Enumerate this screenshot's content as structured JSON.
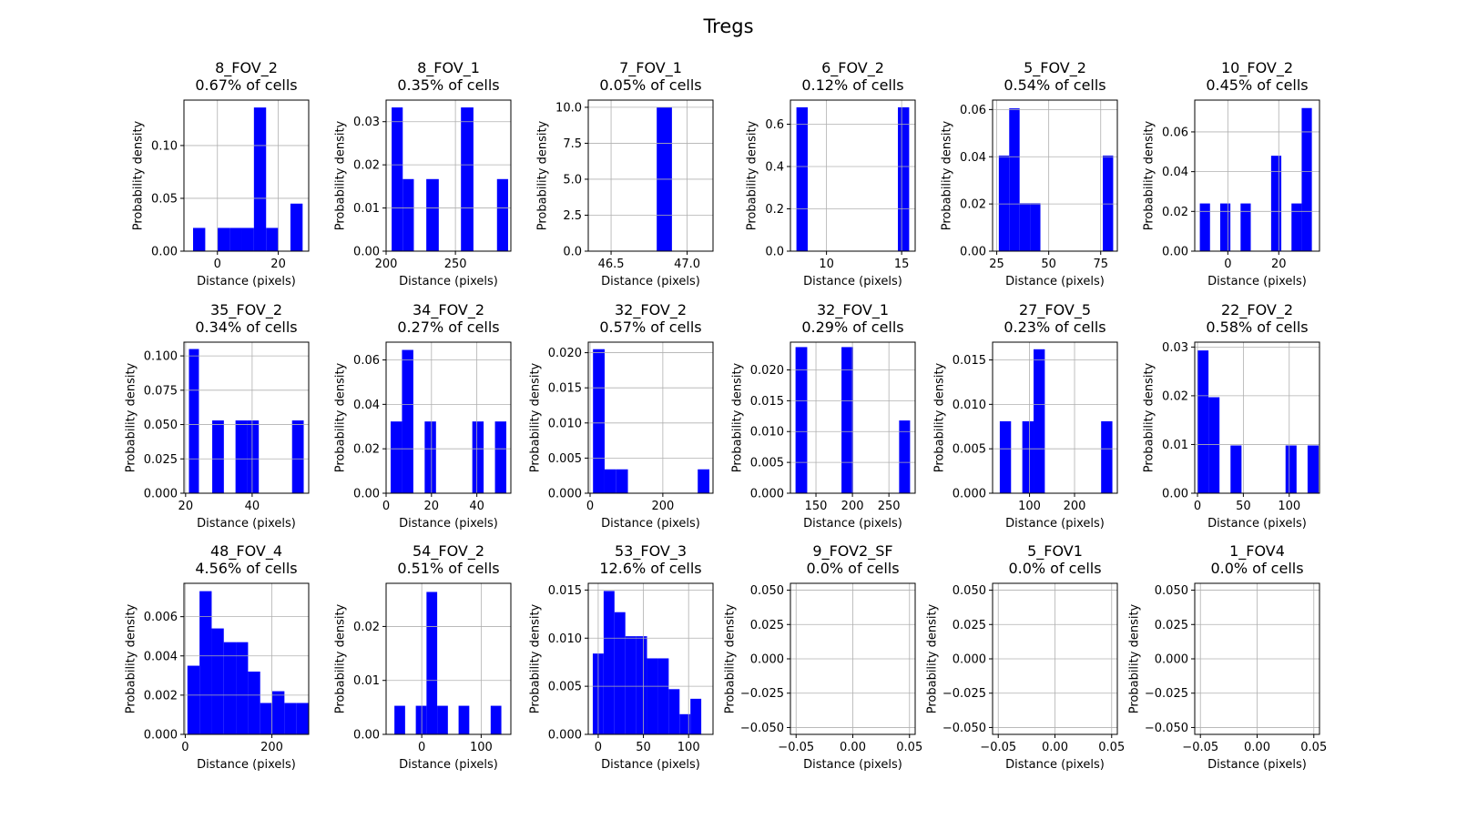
{
  "figure": {
    "suptitle": "Tregs"
  },
  "chart_data": [
    {
      "type": "bar",
      "title": "8_FOV_2",
      "subtitle": "0.67% of cells",
      "xlabel": "Distance (pixels)",
      "ylabel": "Probability density",
      "xlim": [
        -11,
        30
      ],
      "ylim": [
        0,
        0.143
      ],
      "xticks": [
        0,
        20
      ],
      "xtick_labels": [
        "0",
        "20"
      ],
      "yticks": [
        0,
        0.05,
        0.1
      ],
      "ytick_labels": [
        "0.00",
        "0.05",
        "0.10"
      ],
      "bins": [
        [
          -8,
          -4,
          0.022
        ],
        [
          -4,
          0,
          0
        ],
        [
          0,
          4,
          0.022
        ],
        [
          4,
          8,
          0.022
        ],
        [
          8,
          12,
          0.022
        ],
        [
          12,
          16,
          0.136
        ],
        [
          16,
          20,
          0.022
        ],
        [
          20,
          24,
          0
        ],
        [
          24,
          28,
          0.045
        ]
      ]
    },
    {
      "type": "bar",
      "title": "8_FOV_1",
      "subtitle": "0.35% of cells",
      "xlabel": "Distance (pixels)",
      "ylabel": "Probability density",
      "xlim": [
        200,
        290
      ],
      "ylim": [
        0,
        0.035
      ],
      "xticks": [
        200,
        250
      ],
      "xtick_labels": [
        "200",
        "250"
      ],
      "yticks": [
        0,
        0.01,
        0.02,
        0.03
      ],
      "ytick_labels": [
        "0.00",
        "0.01",
        "0.02",
        "0.03"
      ],
      "bins": [
        [
          204,
          212,
          0.0333
        ],
        [
          212,
          220,
          0.0167
        ],
        [
          220,
          229,
          0
        ],
        [
          229,
          238,
          0.0167
        ],
        [
          238,
          254,
          0
        ],
        [
          254,
          263,
          0.0333
        ],
        [
          263,
          280,
          0
        ],
        [
          280,
          288,
          0.0167
        ]
      ]
    },
    {
      "type": "bar",
      "title": "7_FOV_1",
      "subtitle": "0.05% of cells",
      "xlabel": "Distance (pixels)",
      "ylabel": "Probability density",
      "xlim": [
        46.35,
        47.17
      ],
      "ylim": [
        0,
        10.5
      ],
      "xticks": [
        46.5,
        47.0
      ],
      "xtick_labels": [
        "46.5",
        "47.0"
      ],
      "yticks": [
        0,
        2.5,
        5.0,
        7.5,
        10.0
      ],
      "ytick_labels": [
        "0.0",
        "2.5",
        "5.0",
        "7.5",
        "10.0"
      ],
      "bins": [
        [
          46.8,
          46.9,
          10.0
        ]
      ]
    },
    {
      "type": "bar",
      "title": "6_FOV_2",
      "subtitle": "0.12% of cells",
      "xlabel": "Distance (pixels)",
      "ylabel": "Probability density",
      "xlim": [
        7.6,
        15.9
      ],
      "ylim": [
        0,
        0.714
      ],
      "xticks": [
        10,
        15
      ],
      "xtick_labels": [
        "10",
        "15"
      ],
      "yticks": [
        0,
        0.2,
        0.4,
        0.6
      ],
      "ytick_labels": [
        "0.0",
        "0.2",
        "0.4",
        "0.6"
      ],
      "bins": [
        [
          8,
          8.75,
          0.68
        ],
        [
          8.75,
          14.75,
          0
        ],
        [
          14.75,
          15.5,
          0.68
        ]
      ]
    },
    {
      "type": "bar",
      "title": "5_FOV_2",
      "subtitle": "0.54% of cells",
      "xlabel": "Distance (pixels)",
      "ylabel": "Probability density",
      "xlim": [
        23,
        83
      ],
      "ylim": [
        0,
        0.064
      ],
      "xticks": [
        25,
        50,
        75
      ],
      "xtick_labels": [
        "25",
        "50",
        "75"
      ],
      "yticks": [
        0,
        0.02,
        0.04,
        0.06
      ],
      "ytick_labels": [
        "0.00",
        "0.02",
        "0.04",
        "0.06"
      ],
      "bins": [
        [
          26,
          31,
          0.0405
        ],
        [
          31,
          36,
          0.0605
        ],
        [
          36,
          41,
          0.0203
        ],
        [
          41,
          46,
          0.0203
        ],
        [
          46,
          76,
          0
        ],
        [
          76,
          81,
          0.0405
        ]
      ]
    },
    {
      "type": "bar",
      "title": "10_FOV_2",
      "subtitle": "0.45% of cells",
      "xlabel": "Distance (pixels)",
      "ylabel": "Probability density",
      "xlim": [
        -13,
        36
      ],
      "ylim": [
        0,
        0.076
      ],
      "xticks": [
        0,
        20
      ],
      "xtick_labels": [
        "0",
        "20"
      ],
      "yticks": [
        0,
        0.02,
        0.04,
        0.06
      ],
      "ytick_labels": [
        "0.00",
        "0.02",
        "0.04",
        "0.06"
      ],
      "bins": [
        [
          -11,
          -7,
          0.024
        ],
        [
          -7,
          -3,
          0
        ],
        [
          -3,
          1,
          0.024
        ],
        [
          1,
          5,
          0
        ],
        [
          5,
          9,
          0.024
        ],
        [
          9,
          17,
          0
        ],
        [
          17,
          21,
          0.048
        ],
        [
          21,
          25,
          0
        ],
        [
          25,
          29,
          0.024
        ],
        [
          29,
          33,
          0.072
        ]
      ]
    },
    {
      "type": "bar",
      "title": "35_FOV_2",
      "subtitle": "0.34% of cells",
      "xlabel": "Distance (pixels)",
      "ylabel": "Probability density",
      "xlim": [
        19.5,
        57
      ],
      "ylim": [
        0,
        0.11
      ],
      "xticks": [
        20,
        40
      ],
      "xtick_labels": [
        "20",
        "40"
      ],
      "yticks": [
        0,
        0.025,
        0.05,
        0.075,
        0.1
      ],
      "ytick_labels": [
        "0.000",
        "0.025",
        "0.050",
        "0.075",
        "0.100"
      ],
      "bins": [
        [
          21,
          24,
          0.105
        ],
        [
          24,
          28,
          0
        ],
        [
          28,
          31.5,
          0.053
        ],
        [
          31.5,
          35,
          0
        ],
        [
          35,
          38.5,
          0.053
        ],
        [
          38.5,
          42,
          0.053
        ],
        [
          42,
          52,
          0
        ],
        [
          52,
          55.5,
          0.053
        ]
      ]
    },
    {
      "type": "bar",
      "title": "34_FOV_2",
      "subtitle": "0.27% of cells",
      "xlabel": "Distance (pixels)",
      "ylabel": "Probability density",
      "xlim": [
        0,
        55
      ],
      "ylim": [
        0,
        0.068
      ],
      "xticks": [
        0,
        20,
        40
      ],
      "xtick_labels": [
        "0",
        "20",
        "40"
      ],
      "yticks": [
        0,
        0.02,
        0.04,
        0.06
      ],
      "ytick_labels": [
        "0.00",
        "0.02",
        "0.04",
        "0.06"
      ],
      "bins": [
        [
          2,
          7,
          0.0323
        ],
        [
          7,
          12,
          0.0645
        ],
        [
          12,
          17,
          0
        ],
        [
          17,
          22,
          0.0323
        ],
        [
          22,
          38,
          0
        ],
        [
          38,
          43,
          0.0323
        ],
        [
          43,
          48,
          0
        ],
        [
          48,
          53,
          0.0323
        ]
      ]
    },
    {
      "type": "bar",
      "title": "32_FOV_2",
      "subtitle": "0.57% of cells",
      "xlabel": "Distance (pixels)",
      "ylabel": "Probability density",
      "xlim": [
        -5,
        338
      ],
      "ylim": [
        0,
        0.0215
      ],
      "xticks": [
        0,
        200
      ],
      "xtick_labels": [
        "0",
        "200"
      ],
      "yticks": [
        0,
        0.005,
        0.01,
        0.015,
        0.02
      ],
      "ytick_labels": [
        "0.000",
        "0.005",
        "0.010",
        "0.015",
        "0.020"
      ],
      "bins": [
        [
          8,
          40,
          0.0205
        ],
        [
          40,
          72,
          0.0034
        ],
        [
          72,
          104,
          0.0034
        ],
        [
          104,
          296,
          0
        ],
        [
          296,
          328,
          0.0034
        ]
      ]
    },
    {
      "type": "bar",
      "title": "32_FOV_1",
      "subtitle": "0.29% of cells",
      "xlabel": "Distance (pixels)",
      "ylabel": "Probability density",
      "xlim": [
        115,
        286
      ],
      "ylim": [
        0,
        0.0245
      ],
      "xticks": [
        150,
        200,
        250
      ],
      "xtick_labels": [
        "150",
        "200",
        "250"
      ],
      "yticks": [
        0,
        0.005,
        0.01,
        0.015,
        0.02
      ],
      "ytick_labels": [
        "0.000",
        "0.005",
        "0.010",
        "0.015",
        "0.020"
      ],
      "bins": [
        [
          122,
          138,
          0.0237
        ],
        [
          138,
          185,
          0
        ],
        [
          185,
          201,
          0.0237
        ],
        [
          201,
          264,
          0
        ],
        [
          264,
          279,
          0.0118
        ]
      ]
    },
    {
      "type": "bar",
      "title": "27_FOV_5",
      "subtitle": "0.23% of cells",
      "xlabel": "Distance (pixels)",
      "ylabel": "Probability density",
      "xlim": [
        18,
        295
      ],
      "ylim": [
        0,
        0.017
      ],
      "xticks": [
        100,
        200
      ],
      "xtick_labels": [
        "100",
        "200"
      ],
      "yticks": [
        0,
        0.005,
        0.01,
        0.015
      ],
      "ytick_labels": [
        "0.000",
        "0.005",
        "0.010",
        "0.015"
      ],
      "bins": [
        [
          34,
          59,
          0.0081
        ],
        [
          59,
          84,
          0
        ],
        [
          84,
          109,
          0.0081
        ],
        [
          109,
          134,
          0.0162
        ],
        [
          134,
          259,
          0
        ],
        [
          259,
          284,
          0.0081
        ]
      ]
    },
    {
      "type": "bar",
      "title": "22_FOV_2",
      "subtitle": "0.58% of cells",
      "xlabel": "Distance (pixels)",
      "ylabel": "Probability density",
      "xlim": [
        -3,
        133
      ],
      "ylim": [
        0,
        0.031
      ],
      "xticks": [
        0,
        50,
        100
      ],
      "xtick_labels": [
        "0",
        "50",
        "100"
      ],
      "yticks": [
        0,
        0.01,
        0.02,
        0.03
      ],
      "ytick_labels": [
        "0.00",
        "0.01",
        "0.02",
        "0.03"
      ],
      "bins": [
        [
          0,
          12,
          0.0293
        ],
        [
          12,
          24,
          0.0197
        ],
        [
          24,
          36,
          0
        ],
        [
          36,
          48,
          0.0098
        ],
        [
          48,
          96,
          0
        ],
        [
          96,
          108,
          0.0098
        ],
        [
          108,
          120,
          0
        ],
        [
          120,
          132,
          0.0098
        ]
      ]
    },
    {
      "type": "bar",
      "title": "48_FOV_4",
      "subtitle": "4.56% of cells",
      "xlabel": "Distance (pixels)",
      "ylabel": "Probability density",
      "xlim": [
        -3,
        285
      ],
      "ylim": [
        0,
        0.0077
      ],
      "xticks": [
        0,
        200
      ],
      "xtick_labels": [
        "0",
        "200"
      ],
      "yticks": [
        0,
        0.002,
        0.004,
        0.006
      ],
      "ytick_labels": [
        "0.000",
        "0.002",
        "0.004",
        "0.006"
      ],
      "bins": [
        [
          5,
          33,
          0.0035
        ],
        [
          33,
          61,
          0.0073
        ],
        [
          61,
          89,
          0.0054
        ],
        [
          89,
          117,
          0.0047
        ],
        [
          117,
          145,
          0.0047
        ],
        [
          145,
          173,
          0.0032
        ],
        [
          173,
          201,
          0.0016
        ],
        [
          201,
          229,
          0.0022
        ],
        [
          229,
          257,
          0.0016
        ],
        [
          257,
          285,
          0.0016
        ]
      ]
    },
    {
      "type": "bar",
      "title": "54_FOV_2",
      "subtitle": "0.51% of cells",
      "xlabel": "Distance (pixels)",
      "ylabel": "Probability density",
      "xlim": [
        -60,
        150
      ],
      "ylim": [
        0,
        0.028
      ],
      "xticks": [
        0,
        100
      ],
      "xtick_labels": [
        "0",
        "100"
      ],
      "yticks": [
        0,
        0.01,
        0.02
      ],
      "ytick_labels": [
        "0.00",
        "0.01",
        "0.02"
      ],
      "bins": [
        [
          -46,
          -28,
          0.0053
        ],
        [
          -28,
          -10,
          0
        ],
        [
          -10,
          8,
          0.0053
        ],
        [
          8,
          26,
          0.0264
        ],
        [
          26,
          44,
          0.0053
        ],
        [
          44,
          62,
          0
        ],
        [
          62,
          80,
          0.0053
        ],
        [
          80,
          116,
          0
        ],
        [
          116,
          134,
          0.0053
        ]
      ]
    },
    {
      "type": "bar",
      "title": "53_FOV_3",
      "subtitle": "12.6% of cells",
      "xlabel": "Distance (pixels)",
      "ylabel": "Probability density",
      "xlim": [
        -11,
        127
      ],
      "ylim": [
        0,
        0.0157
      ],
      "xticks": [
        0,
        50,
        100
      ],
      "xtick_labels": [
        "0",
        "50",
        "100"
      ],
      "yticks": [
        0,
        0.005,
        0.01,
        0.015
      ],
      "ytick_labels": [
        "0.000",
        "0.005",
        "0.010",
        "0.015"
      ],
      "bins": [
        [
          -6,
          6,
          0.0084
        ],
        [
          6,
          18,
          0.0149
        ],
        [
          18,
          30,
          0.0127
        ],
        [
          30,
          42,
          0.0102
        ],
        [
          42,
          54,
          0.0102
        ],
        [
          54,
          66,
          0.0079
        ],
        [
          66,
          78,
          0.0079
        ],
        [
          78,
          90,
          0.0047
        ],
        [
          90,
          102,
          0.0021
        ],
        [
          102,
          114,
          0.0037
        ]
      ]
    },
    {
      "type": "bar",
      "title": "9_FOV2_SF",
      "subtitle": "0.0% of cells",
      "xlabel": "Distance (pixels)",
      "ylabel": "Probability density",
      "xlim": [
        -0.055,
        0.055
      ],
      "ylim": [
        -0.055,
        0.055
      ],
      "xticks": [
        -0.05,
        0,
        0.05
      ],
      "xtick_labels": [
        "−0.05",
        "0.00",
        "0.05"
      ],
      "yticks": [
        -0.05,
        -0.025,
        0,
        0.025,
        0.05
      ],
      "ytick_labels": [
        "−0.050",
        "−0.025",
        "0.000",
        "0.025",
        "0.050"
      ],
      "bins": []
    },
    {
      "type": "bar",
      "title": "5_FOV1",
      "subtitle": "0.0% of cells",
      "xlabel": "Distance (pixels)",
      "ylabel": "Probability density",
      "xlim": [
        -0.055,
        0.055
      ],
      "ylim": [
        -0.055,
        0.055
      ],
      "xticks": [
        -0.05,
        0,
        0.05
      ],
      "xtick_labels": [
        "−0.05",
        "0.00",
        "0.05"
      ],
      "yticks": [
        -0.05,
        -0.025,
        0,
        0.025,
        0.05
      ],
      "ytick_labels": [
        "−0.050",
        "−0.025",
        "0.000",
        "0.025",
        "0.050"
      ],
      "bins": []
    },
    {
      "type": "bar",
      "title": "1_FOV4",
      "subtitle": "0.0% of cells",
      "xlabel": "Distance (pixels)",
      "ylabel": "Probability density",
      "xlim": [
        -0.055,
        0.055
      ],
      "ylim": [
        -0.055,
        0.055
      ],
      "xticks": [
        -0.05,
        0,
        0.05
      ],
      "xtick_labels": [
        "−0.05",
        "0.00",
        "0.05"
      ],
      "yticks": [
        -0.05,
        -0.025,
        0,
        0.025,
        0.05
      ],
      "ytick_labels": [
        "−0.050",
        "−0.025",
        "0.000",
        "0.025",
        "0.050"
      ],
      "bins": []
    }
  ],
  "colors": {
    "bar": "#0000ff",
    "grid": "#b0b0b0"
  }
}
